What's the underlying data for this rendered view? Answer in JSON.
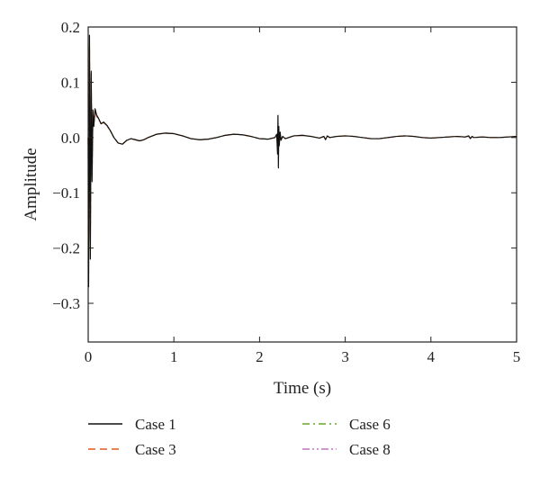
{
  "chart_data": {
    "type": "line",
    "title": "",
    "xlabel": "Time (s)",
    "ylabel": "Amplitude",
    "xlim": [
      0,
      5
    ],
    "ylim": [
      -0.37,
      0.2
    ],
    "xticks": [
      0,
      1,
      2,
      3,
      4,
      5
    ],
    "xtick_labels": [
      "0",
      "1",
      "2",
      "3",
      "4",
      "5"
    ],
    "yticks": [
      0.2,
      0.1,
      0.0,
      -0.1,
      -0.2,
      -0.3
    ],
    "ytick_labels": [
      "0.2",
      "0.1",
      "0.0",
      "−0.1",
      "−0.2",
      "−0.3"
    ],
    "grid": false,
    "legend_position": "bottom",
    "x": [
      0,
      0.005,
      0.015,
      0.025,
      0.035,
      0.045,
      0.055,
      0.065,
      0.08,
      0.1,
      0.12,
      0.15,
      0.18,
      0.22,
      0.26,
      0.3,
      0.35,
      0.4,
      0.45,
      0.5,
      0.55,
      0.6,
      0.65,
      0.7,
      0.8,
      0.9,
      1.0,
      1.1,
      1.2,
      1.3,
      1.4,
      1.5,
      1.6,
      1.7,
      1.8,
      1.9,
      2.0,
      2.1,
      2.18,
      2.2,
      2.21,
      2.215,
      2.22,
      2.225,
      2.23,
      2.24,
      2.25,
      2.27,
      2.3,
      2.4,
      2.5,
      2.6,
      2.7,
      2.75,
      2.77,
      2.79,
      2.82,
      2.9,
      3.0,
      3.1,
      3.2,
      3.3,
      3.4,
      3.5,
      3.6,
      3.7,
      3.8,
      3.9,
      4.0,
      4.1,
      4.2,
      4.3,
      4.4,
      4.44,
      4.46,
      4.48,
      4.5,
      4.6,
      4.7,
      4.8,
      4.9,
      5.0
    ],
    "series": [
      {
        "name": "Case 1",
        "color": "#111111",
        "dash": "solid",
        "values": [
          0,
          -0.27,
          0.185,
          -0.22,
          0.12,
          -0.08,
          0.05,
          0.02,
          0.052,
          0.04,
          0.035,
          0.025,
          0.028,
          0.022,
          0.012,
          0.0,
          -0.01,
          -0.012,
          -0.005,
          -0.002,
          -0.004,
          -0.006,
          -0.004,
          0.0,
          0.006,
          0.008,
          0.007,
          0.003,
          -0.002,
          -0.004,
          -0.003,
          0.0,
          0.004,
          0.006,
          0.005,
          0.002,
          -0.002,
          -0.003,
          0.0,
          0.006,
          -0.03,
          0.04,
          -0.055,
          0.02,
          -0.015,
          0.01,
          -0.005,
          0.002,
          -0.002,
          0.003,
          0.004,
          0.002,
          -0.001,
          0.002,
          -0.004,
          0.003,
          0.0,
          0.002,
          0.003,
          0.002,
          0.0,
          -0.002,
          -0.002,
          0.0,
          0.002,
          0.003,
          0.002,
          0.0,
          -0.001,
          0.0,
          0.001,
          0.002,
          0.001,
          0.003,
          -0.002,
          0.002,
          0.0,
          0.001,
          0.0,
          0.0,
          0.001,
          0.002
        ]
      },
      {
        "name": "Case 3",
        "color": "#e05a1e",
        "dash": "dashed",
        "values": [
          0,
          -0.2,
          0.165,
          -0.18,
          0.1,
          -0.06,
          0.045,
          0.022,
          0.048,
          0.038,
          0.034,
          0.025,
          0.027,
          0.021,
          0.012,
          0.0,
          -0.01,
          -0.012,
          -0.005,
          -0.002,
          -0.004,
          -0.006,
          -0.004,
          0.0,
          0.006,
          0.008,
          0.007,
          0.003,
          -0.002,
          -0.004,
          -0.003,
          0.0,
          0.004,
          0.006,
          0.005,
          0.002,
          -0.002,
          -0.003,
          0.0,
          0.004,
          -0.015,
          0.018,
          -0.02,
          0.01,
          -0.008,
          0.006,
          -0.003,
          0.002,
          -0.002,
          0.003,
          0.004,
          0.002,
          -0.001,
          0.002,
          -0.003,
          0.002,
          0.0,
          0.002,
          0.003,
          0.002,
          0.0,
          -0.002,
          -0.002,
          0.0,
          0.002,
          0.003,
          0.002,
          0.0,
          -0.001,
          0.0,
          0.001,
          0.002,
          0.001,
          0.002,
          -0.001,
          0.002,
          0.0,
          0.001,
          0.0,
          0.0,
          0.001,
          0.002
        ]
      },
      {
        "name": "Case 6",
        "color": "#6aa628",
        "dash": "dashdot",
        "values": [
          0,
          -0.22,
          0.17,
          -0.19,
          0.11,
          -0.07,
          0.046,
          0.021,
          0.049,
          0.039,
          0.034,
          0.025,
          0.027,
          0.021,
          0.012,
          0.0,
          -0.01,
          -0.012,
          -0.005,
          -0.002,
          -0.004,
          -0.006,
          -0.004,
          0.0,
          0.006,
          0.008,
          0.007,
          0.003,
          -0.002,
          -0.004,
          -0.003,
          0.0,
          0.004,
          0.006,
          0.005,
          0.002,
          -0.002,
          -0.003,
          0.0,
          0.005,
          -0.02,
          0.022,
          -0.03,
          0.012,
          -0.01,
          0.007,
          -0.004,
          0.002,
          -0.002,
          0.003,
          0.004,
          0.002,
          -0.001,
          0.002,
          -0.003,
          0.002,
          0.0,
          0.002,
          0.003,
          0.002,
          0.0,
          -0.002,
          -0.002,
          0.0,
          0.002,
          0.003,
          0.002,
          0.0,
          -0.001,
          0.0,
          0.001,
          0.002,
          0.001,
          0.003,
          -0.002,
          0.002,
          0.0,
          0.001,
          0.0,
          0.0,
          0.001,
          0.002
        ]
      },
      {
        "name": "Case 8",
        "color": "#c074c4",
        "dash": "dashdotdot",
        "values": [
          0,
          -0.18,
          0.16,
          -0.16,
          0.09,
          -0.05,
          0.044,
          0.023,
          0.047,
          0.038,
          0.033,
          0.025,
          0.027,
          0.021,
          0.012,
          0.0,
          -0.01,
          -0.012,
          -0.005,
          -0.002,
          -0.004,
          -0.006,
          -0.004,
          0.0,
          0.006,
          0.008,
          0.007,
          0.003,
          -0.002,
          -0.004,
          -0.003,
          0.0,
          0.004,
          0.006,
          0.005,
          0.002,
          -0.002,
          -0.003,
          0.0,
          0.004,
          -0.012,
          0.015,
          -0.018,
          0.008,
          -0.006,
          0.005,
          -0.003,
          0.002,
          -0.002,
          0.003,
          0.004,
          0.002,
          -0.001,
          0.002,
          -0.003,
          0.002,
          0.0,
          0.002,
          0.003,
          0.002,
          0.0,
          -0.002,
          -0.002,
          0.0,
          0.002,
          0.003,
          0.002,
          0.0,
          -0.001,
          0.0,
          0.001,
          0.002,
          0.001,
          0.002,
          -0.001,
          0.002,
          0.0,
          0.001,
          0.0,
          0.0,
          0.001,
          0.002
        ]
      }
    ]
  }
}
